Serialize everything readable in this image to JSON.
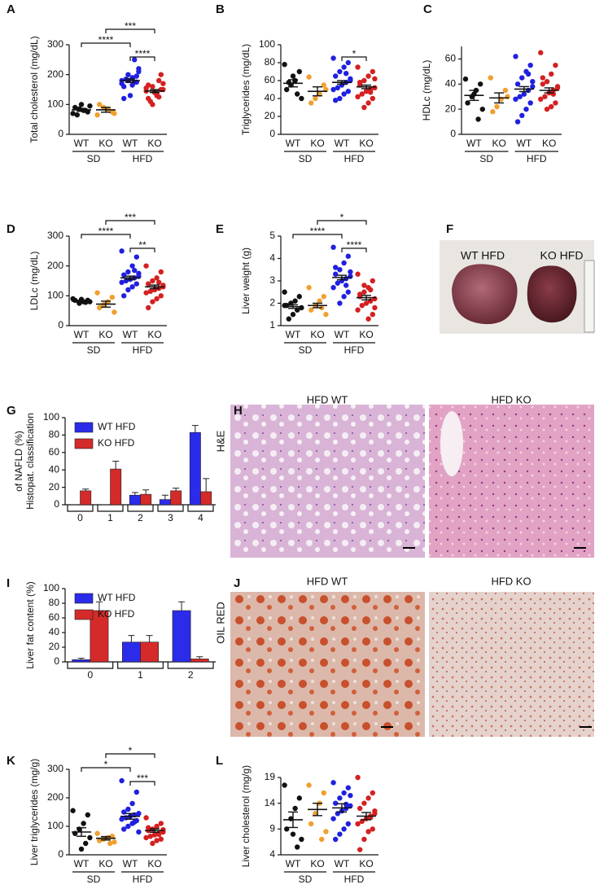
{
  "chart_data": [
    {
      "type": "dot",
      "panel": "A",
      "ylabel": [
        "Total cholesterol (mg/dL)"
      ],
      "ylim": [
        0,
        300
      ],
      "yticks": [
        0,
        100,
        200,
        300
      ],
      "categories": [
        "WT",
        "KO",
        "WT",
        "KO"
      ],
      "groups": [
        "SD",
        "HFD"
      ],
      "colors": [
        "#111111",
        "#f0a030",
        "#2020e0",
        "#d42020"
      ],
      "points": [
        [
          70,
          75,
          80,
          85,
          90,
          95,
          80,
          100,
          65
        ],
        [
          65,
          75,
          85,
          90,
          100,
          70
        ],
        [
          180,
          175,
          190,
          200,
          160,
          210,
          250,
          130,
          185,
          170,
          195,
          165,
          180,
          120,
          220,
          175
        ],
        [
          145,
          150,
          130,
          160,
          120,
          170,
          180,
          140,
          110,
          155,
          200,
          135,
          100,
          165,
          150,
          125
        ]
      ],
      "mean": [
        82,
        82,
        180,
        145
      ],
      "sem": [
        5,
        8,
        6,
        5
      ],
      "significance": [
        {
          "pair": [
            2,
            3
          ],
          "label": "****"
        },
        {
          "pair": [
            0,
            2
          ],
          "label": "****"
        },
        {
          "pair": [
            1,
            3
          ],
          "label": "***"
        }
      ]
    },
    {
      "type": "dot",
      "panel": "B",
      "ylabel": [
        "Triglycerides (mg/dL)"
      ],
      "ylim": [
        0,
        100
      ],
      "yticks": [
        0,
        20,
        40,
        60,
        80,
        100
      ],
      "categories": [
        "WT",
        "KO",
        "WT",
        "KO"
      ],
      "groups": [
        "SD",
        "HFD"
      ],
      "colors": [
        "#111111",
        "#f0a030",
        "#2020e0",
        "#d42020"
      ],
      "points": [
        [
          78,
          70,
          60,
          55,
          50,
          40,
          45,
          65,
          58
        ],
        [
          64,
          55,
          45,
          40,
          35,
          50
        ],
        [
          85,
          80,
          75,
          70,
          65,
          60,
          58,
          55,
          52,
          50,
          48,
          45,
          40,
          38,
          62,
          68
        ],
        [
          75,
          70,
          65,
          60,
          55,
          52,
          50,
          48,
          45,
          42,
          40,
          35,
          30,
          58,
          62,
          47
        ]
      ],
      "mean": [
        57,
        48,
        58,
        53
      ],
      "sem": [
        4,
        5,
        2,
        2
      ],
      "significance": [
        {
          "pair": [
            2,
            3
          ],
          "label": "*"
        }
      ]
    },
    {
      "type": "dot",
      "panel": "C",
      "ylabel": [
        "HDLc (mg/dL)"
      ],
      "ylim": [
        0,
        70
      ],
      "yticks": [
        0,
        20,
        40,
        60
      ],
      "categories": [
        "WT",
        "KO",
        "WT",
        "KO"
      ],
      "groups": [
        "SD",
        "HFD"
      ],
      "colors": [
        "#111111",
        "#f0a030",
        "#2020e0",
        "#d42020"
      ],
      "points": [
        [
          44,
          40,
          35,
          30,
          25,
          20,
          12,
          32
        ],
        [
          45,
          35,
          28,
          22,
          18,
          30
        ],
        [
          62,
          55,
          50,
          45,
          40,
          38,
          35,
          32,
          30,
          28,
          25,
          20,
          15,
          10,
          42,
          48
        ],
        [
          65,
          55,
          48,
          42,
          40,
          38,
          35,
          33,
          30,
          28,
          25,
          22,
          20,
          45,
          37,
          32
        ]
      ],
      "mean": [
        31,
        29,
        36,
        35
      ],
      "sem": [
        4,
        4,
        2,
        2
      ],
      "significance": []
    },
    {
      "type": "dot",
      "panel": "D",
      "ylabel": [
        "LDLc (mg/dL)"
      ],
      "ylim": [
        0,
        300
      ],
      "yticks": [
        0,
        100,
        200,
        300
      ],
      "categories": [
        "WT",
        "KO",
        "WT",
        "KO"
      ],
      "groups": [
        "SD",
        "HFD"
      ],
      "colors": [
        "#111111",
        "#f0a030",
        "#2020e0",
        "#d42020"
      ],
      "points": [
        [
          90,
          85,
          80,
          75,
          85,
          80,
          78,
          88
        ],
        [
          110,
          95,
          80,
          70,
          60,
          45
        ],
        [
          250,
          230,
          200,
          180,
          170,
          165,
          160,
          155,
          150,
          145,
          140,
          130,
          120,
          100,
          175,
          185
        ],
        [
          200,
          180,
          160,
          150,
          140,
          130,
          125,
          120,
          115,
          110,
          100,
          90,
          80,
          60,
          135,
          145
        ]
      ],
      "mean": [
        82,
        72,
        160,
        130
      ],
      "sem": [
        3,
        10,
        6,
        6
      ],
      "significance": [
        {
          "pair": [
            2,
            3
          ],
          "label": "**"
        },
        {
          "pair": [
            0,
            2
          ],
          "label": "****"
        },
        {
          "pair": [
            1,
            3
          ],
          "label": "***"
        }
      ]
    },
    {
      "type": "dot",
      "panel": "E",
      "ylabel": [
        "Liver weight (g)"
      ],
      "ylim": [
        1,
        5
      ],
      "yticks": [
        1,
        2,
        3,
        4,
        5
      ],
      "categories": [
        "WT",
        "KO",
        "WT",
        "KO"
      ],
      "groups": [
        "SD",
        "HFD"
      ],
      "colors": [
        "#111111",
        "#f0a030",
        "#2020e0",
        "#d42020"
      ],
      "points": [
        [
          2.5,
          2.3,
          2.1,
          2.0,
          1.9,
          1.8,
          1.7,
          1.5,
          1.3,
          1.9
        ],
        [
          2.7,
          2.3,
          2.1,
          1.9,
          1.7,
          1.5,
          1.8
        ],
        [
          4.5,
          4.1,
          3.8,
          3.5,
          3.3,
          3.2,
          3.1,
          3.0,
          2.9,
          2.7,
          2.5,
          2.3,
          2.0,
          3.6,
          3.4,
          2.8
        ],
        [
          3.3,
          3.0,
          2.7,
          2.5,
          2.3,
          2.2,
          2.1,
          2.0,
          1.9,
          1.7,
          1.5,
          1.3,
          2.8,
          2.4,
          1.8,
          2.6
        ]
      ],
      "mean": [
        1.85,
        1.9,
        3.15,
        2.25
      ],
      "sem": [
        0.08,
        0.1,
        0.1,
        0.1
      ],
      "significance": [
        {
          "pair": [
            2,
            3
          ],
          "label": "****"
        },
        {
          "pair": [
            0,
            2
          ],
          "label": "****"
        },
        {
          "pair": [
            1,
            3
          ],
          "label": "*"
        }
      ]
    },
    {
      "type": "bar",
      "panel": "G",
      "ylabel": [
        "Histopat. classification",
        "of NAFLD (%)"
      ],
      "ylim": [
        0,
        100
      ],
      "yticks": [
        0,
        20,
        40,
        60,
        80,
        100
      ],
      "categories": [
        "0",
        "1",
        "2",
        "3",
        "4"
      ],
      "series": [
        {
          "name": "WT HFD",
          "color": "#2b2bea",
          "values": [
            0,
            0,
            11,
            6,
            83
          ],
          "errors": [
            0,
            0,
            3,
            5,
            8
          ]
        },
        {
          "name": "KO HFD",
          "color": "#d42a2a",
          "values": [
            16,
            41,
            12,
            16,
            15
          ],
          "errors": [
            2,
            9,
            5,
            3,
            15
          ]
        }
      ]
    },
    {
      "type": "bar",
      "panel": "I",
      "ylabel": [
        "Liver fat content (%)"
      ],
      "ylim": [
        0,
        100
      ],
      "yticks": [
        0,
        20,
        40,
        60,
        80,
        100
      ],
      "categories": [
        "0",
        "1",
        "2"
      ],
      "series": [
        {
          "name": "WT HFD",
          "color": "#2b2bea",
          "values": [
            3,
            27,
            70
          ],
          "errors": [
            2,
            9,
            12
          ]
        },
        {
          "name": "KO HFD",
          "color": "#d42a2a",
          "values": [
            70,
            27,
            4
          ],
          "errors": [
            12,
            9,
            3
          ]
        }
      ]
    },
    {
      "type": "dot",
      "panel": "K",
      "ylabel": [
        "Liver triglycerides (mg/g)"
      ],
      "ylim": [
        0,
        300
      ],
      "yticks": [
        0,
        100,
        200,
        300
      ],
      "categories": [
        "WT",
        "KO",
        "WT",
        "KO"
      ],
      "groups": [
        "SD",
        "HFD"
      ],
      "colors": [
        "#111111",
        "#f0a030",
        "#2020e0",
        "#d42020"
      ],
      "points": [
        [
          155,
          140,
          110,
          90,
          75,
          60,
          40,
          20
        ],
        [
          75,
          65,
          60,
          55,
          50,
          45,
          40
        ],
        [
          260,
          220,
          180,
          160,
          150,
          145,
          140,
          135,
          130,
          125,
          120,
          110,
          100,
          90,
          80,
          115
        ],
        [
          130,
          110,
          100,
          90,
          85,
          80,
          75,
          70,
          65,
          60,
          55,
          50,
          40,
          95,
          88,
          72
        ]
      ],
      "mean": [
        80,
        58,
        135,
        85
      ],
      "sem": [
        15,
        6,
        10,
        6
      ],
      "significance": [
        {
          "pair": [
            2,
            3
          ],
          "label": "***"
        },
        {
          "pair": [
            0,
            2
          ],
          "label": "*"
        },
        {
          "pair": [
            1,
            3
          ],
          "label": "*"
        }
      ]
    },
    {
      "type": "dot",
      "panel": "L",
      "ylabel": [
        "Liver cholesterol (mg/g)"
      ],
      "ylim": [
        4,
        19
      ],
      "yticks": [
        4,
        9,
        14,
        19
      ],
      "categories": [
        "WT",
        "KO",
        "WT",
        "KO"
      ],
      "groups": [
        "SD",
        "HFD"
      ],
      "colors": [
        "#111111",
        "#f0a030",
        "#2020e0",
        "#d42020"
      ],
      "points": [
        [
          17.5,
          15,
          13,
          11,
          9,
          7,
          5.5,
          8
        ],
        [
          17.5,
          16,
          14,
          12,
          10,
          8.5,
          7
        ],
        [
          18,
          17,
          16,
          15,
          14,
          13.5,
          13,
          12.5,
          12,
          11,
          10,
          9,
          8,
          7,
          15.5,
          13.8
        ],
        [
          19,
          16,
          15,
          14,
          13,
          12,
          11.5,
          11,
          10.5,
          10,
          9,
          8.5,
          7,
          5,
          12.5,
          11.2
        ]
      ],
      "mean": [
        10.8,
        12.8,
        13.1,
        11.5
      ],
      "sem": [
        1.5,
        1.2,
        0.8,
        0.7
      ],
      "significance": []
    }
  ],
  "images": [
    {
      "panel": "F",
      "labels": [
        "WT HFD",
        "KO HFD"
      ]
    },
    {
      "panel": "H",
      "side_label": "H&E",
      "titles": [
        "HFD WT",
        "HFD KO"
      ]
    },
    {
      "panel": "J",
      "side_label": "OIL RED",
      "titles": [
        "HFD WT",
        "HFD KO"
      ]
    }
  ]
}
